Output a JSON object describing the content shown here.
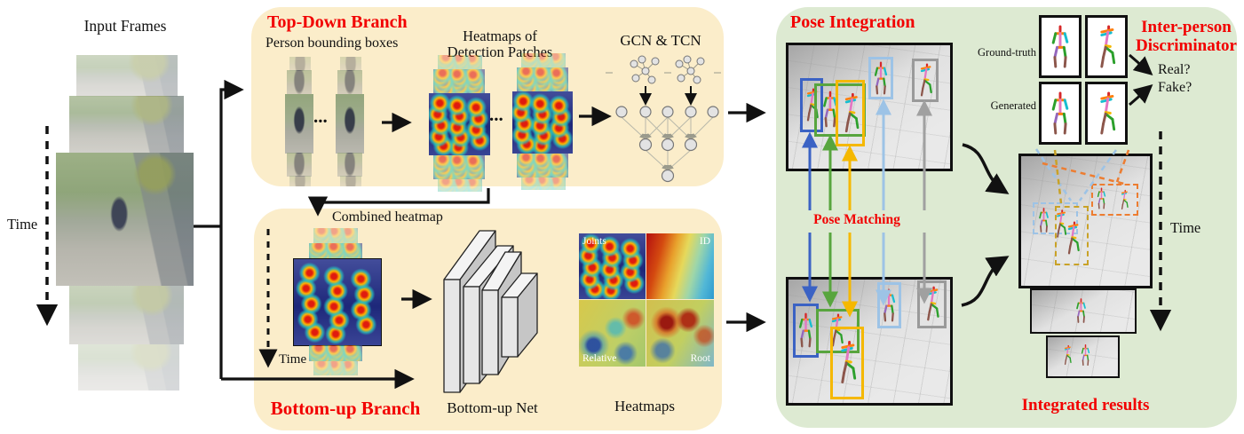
{
  "input": {
    "title": "Input Frames",
    "time_label": "Time"
  },
  "top_down": {
    "title": "Top-Down Branch",
    "bbox_label": "Person bounding boxes",
    "heatmaps_label_line1": "Heatmaps of",
    "heatmaps_label_line2": "Detection Patches",
    "gcn_label": "GCN & TCN",
    "ellipsis": "..."
  },
  "bottom_up": {
    "title": "Bottom-up Branch",
    "combined_label": "Combined heatmap",
    "time_label": "Time",
    "net_label": "Bottom-up Net",
    "heatmaps_label": "Heatmaps",
    "quadrants": [
      "Joints",
      "ID",
      "Relative",
      "Root"
    ]
  },
  "pose_integration": {
    "title": "Pose Integration",
    "matching_label": "Pose Matching"
  },
  "discriminator": {
    "title_line1": "Inter-person",
    "title_line2": "Discriminator",
    "ground_truth_label": "Ground-truth",
    "generated_label": "Generated",
    "real_label": "Real?",
    "fake_label": "Fake?"
  },
  "integrated": {
    "title": "Integrated results",
    "time_label": "Time"
  },
  "colors": {
    "branch_bg": "#FBEDCA",
    "integration_bg": "#DDEAD2",
    "accent_red": "#F20000",
    "pose_match_colors": [
      "#3B62C4",
      "#58A53E",
      "#F5B800",
      "#9DC3E6",
      "#A0A0A0"
    ],
    "dashed_assoc_colors": [
      "#9DC3E6",
      "#C9A227",
      "#ED7D31"
    ]
  }
}
